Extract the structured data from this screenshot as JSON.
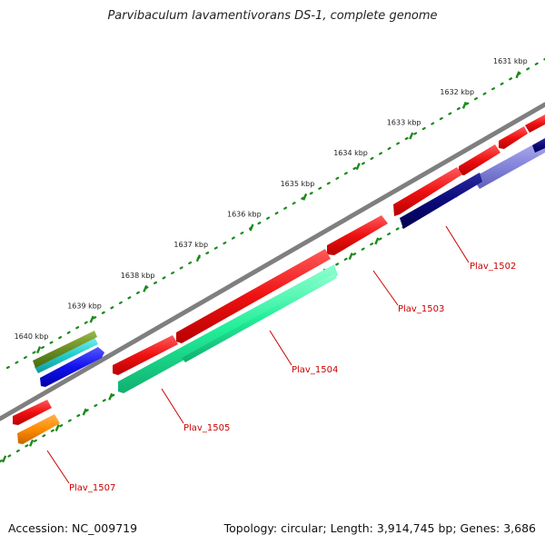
{
  "title": "Parvibaculum lavamentivorans DS-1, complete genome",
  "footer": {
    "accession": "Accession: NC_009719",
    "topology": "Topology: circular; Length: 3,914,745 bp; Genes: 3,686"
  },
  "ticks": [
    {
      "label": "1631 kbp",
      "kbp": 1631
    },
    {
      "label": "1632 kbp",
      "kbp": 1632
    },
    {
      "label": "1633 kbp",
      "kbp": 1633
    },
    {
      "label": "1634 kbp",
      "kbp": 1634
    },
    {
      "label": "1635 kbp",
      "kbp": 1635
    },
    {
      "label": "1636 kbp",
      "kbp": 1636
    },
    {
      "label": "1637 kbp",
      "kbp": 1637
    },
    {
      "label": "1638 kbp",
      "kbp": 1638
    },
    {
      "label": "1639 kbp",
      "kbp": 1639
    },
    {
      "label": "1640 kbp",
      "kbp": 1640
    }
  ],
  "gene_labels": [
    {
      "name": "Plav_1502",
      "color": "#cc0000"
    },
    {
      "name": "Plav_1503",
      "color": "#cc0000"
    },
    {
      "name": "Plav_1504",
      "color": "#cc0000"
    },
    {
      "name": "Plav_1505",
      "color": "#cc0000"
    },
    {
      "name": "Plav_1507",
      "color": "#cc0000"
    }
  ],
  "colors": {
    "backbone": "#7f7f7f",
    "tick_dot": "#1a8a1a",
    "gene_red": "#ee1111",
    "gene_green": "#22ee99",
    "gene_blue": "#1111ee",
    "gene_navy": "#0a0a7a",
    "gene_lavender": "#8888dd",
    "gene_olive": "#6b8e23",
    "gene_cyan": "#22cccc",
    "gene_orange": "#ff8c00"
  }
}
